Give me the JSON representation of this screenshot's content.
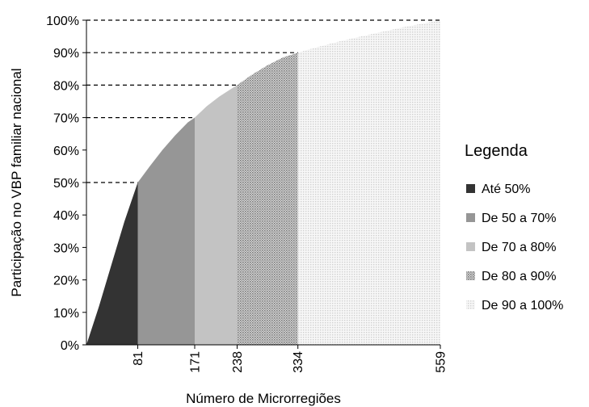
{
  "chart_data": {
    "type": "area",
    "xlabel": "Número de Microrregiões",
    "ylabel": "Participação no VBP familiar nacional",
    "ylim": [
      0,
      100
    ],
    "xlim": [
      0,
      559
    ],
    "y_ticks": [
      "0%",
      "10%",
      "20%",
      "30%",
      "40%",
      "50%",
      "60%",
      "70%",
      "80%",
      "90%",
      "100%"
    ],
    "x_ticks": [
      "81",
      "171",
      "238",
      "334",
      "559"
    ],
    "grid": false,
    "reference_lines": [
      50,
      70,
      80,
      90,
      100
    ],
    "curve": {
      "x": [
        0,
        20,
        40,
        60,
        81,
        100,
        120,
        140,
        160,
        171,
        190,
        210,
        230,
        238,
        260,
        285,
        310,
        334,
        360,
        400,
        450,
        500,
        559
      ],
      "y": [
        0,
        12,
        25,
        38,
        50,
        55,
        60,
        64.5,
        68.5,
        70,
        73.5,
        76.5,
        79,
        80,
        83,
        86,
        88.5,
        90,
        91.5,
        93.5,
        95.7,
        97.8,
        100
      ]
    },
    "segments": [
      {
        "name": "Até 50%",
        "x_start": 0,
        "x_end": 81,
        "color": "#333333",
        "pattern": "solid"
      },
      {
        "name": "De 50 a 70%",
        "x_start": 81,
        "x_end": 171,
        "color": "#969696",
        "pattern": "solid"
      },
      {
        "name": "De 70 a 80%",
        "x_start": 171,
        "x_end": 238,
        "color": "#c3c3c3",
        "pattern": "solid"
      },
      {
        "name": "De 80 a 90%",
        "x_start": 238,
        "x_end": 334,
        "color": "#a5a5a5",
        "pattern": "dense-dots"
      },
      {
        "name": "De 90 a 100%",
        "x_start": 334,
        "x_end": 559,
        "color": "#d2d2d2",
        "pattern": "sparse-dots"
      }
    ],
    "legend": {
      "title": "Legenda",
      "placement": "right",
      "items": [
        "Até 50%",
        "De 50 a 70%",
        "De 70 a 80%",
        "De 80 a 90%",
        "De 90 a 100%"
      ]
    }
  }
}
